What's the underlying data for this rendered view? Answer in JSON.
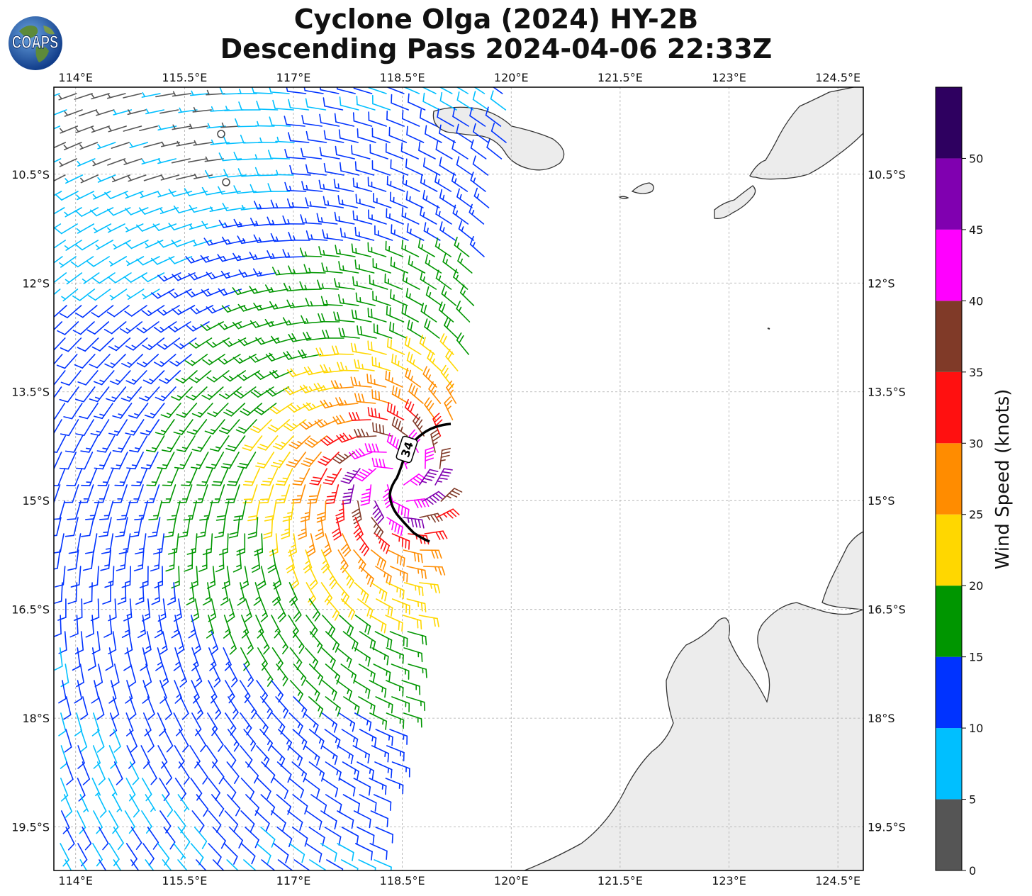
{
  "title_line1": "Cyclone Olga (2024) HY-2B",
  "title_line2": "Descending Pass 2024-04-06 22:33Z",
  "logo_text": "COAPS",
  "colorbar": {
    "label": "Wind Speed (knots)",
    "tick_labels": [
      "0",
      "5",
      "10",
      "15",
      "20",
      "25",
      "30",
      "35",
      "40",
      "45",
      "50"
    ],
    "bins": [
      {
        "range": "0-5",
        "color": "#555555"
      },
      {
        "range": "5-10",
        "color": "#00bfff"
      },
      {
        "range": "10-15",
        "color": "#0033ff"
      },
      {
        "range": "15-20",
        "color": "#009600"
      },
      {
        "range": "20-25",
        "color": "#ffd700"
      },
      {
        "range": "25-30",
        "color": "#ff8c00"
      },
      {
        "range": "30-35",
        "color": "#ff1010"
      },
      {
        "range": "35-40",
        "color": "#803a28"
      },
      {
        "range": "40-45",
        "color": "#ff00ff"
      },
      {
        "range": "45-50",
        "color": "#8000b0"
      },
      {
        "range": "50+",
        "color": "#2e0060"
      }
    ]
  },
  "map": {
    "lon_range": [
      113.7,
      124.85
    ],
    "lat_range": [
      -20.1,
      -9.3
    ],
    "lon_ticks": [
      114,
      115.5,
      117,
      118.5,
      120,
      121.5,
      123,
      124.5
    ],
    "lat_ticks": [
      -10.5,
      -12,
      -13.5,
      -15,
      -16.5,
      -18,
      -19.5
    ],
    "lon_tick_labels": [
      "114°E",
      "115.5°E",
      "117°E",
      "118.5°E",
      "120°E",
      "121.5°E",
      "123°E",
      "124.5°E"
    ],
    "lat_tick_labels": [
      "10.5°S",
      "12°S",
      "13.5°S",
      "15°S",
      "16.5°S",
      "18°S",
      "19.5°S"
    ],
    "storm_center": {
      "lon": 118.4,
      "lat": -14.7
    },
    "contour_label": "34",
    "swath_east_edge_lon": 119.3
  }
}
